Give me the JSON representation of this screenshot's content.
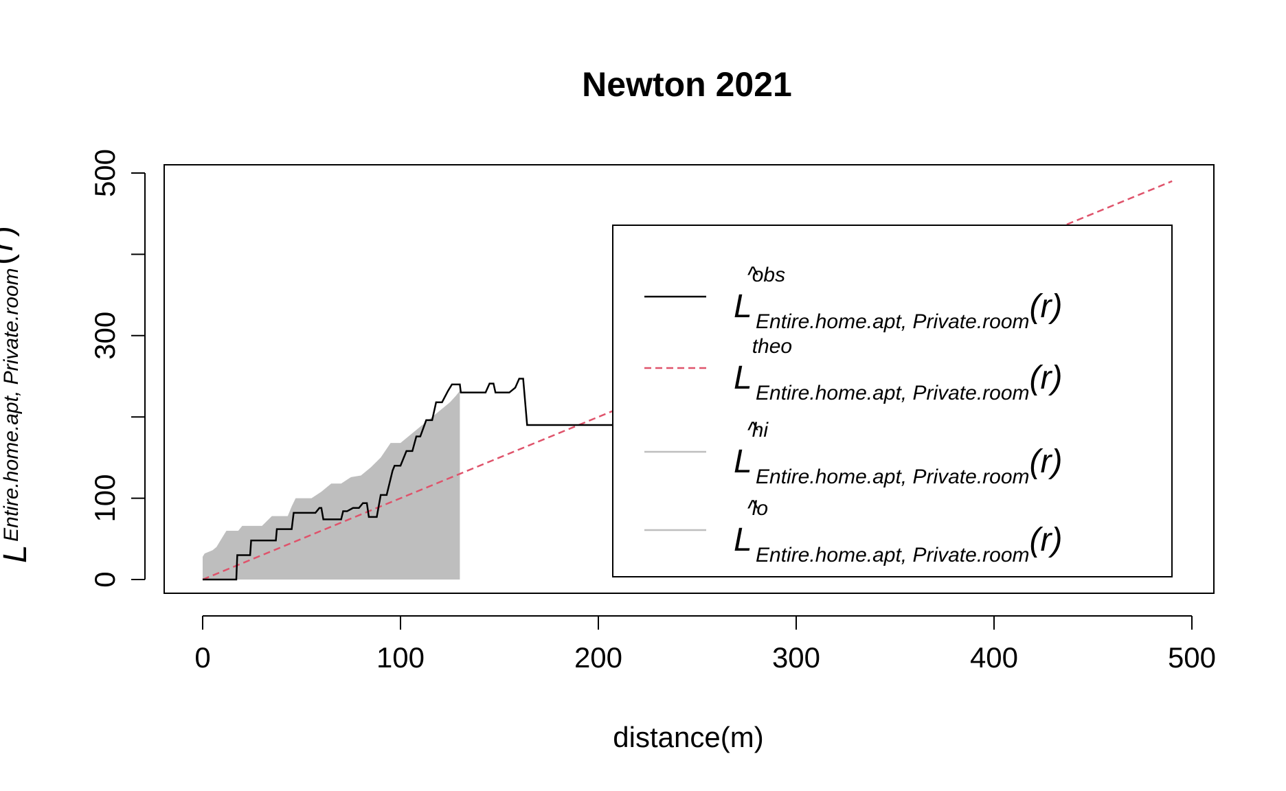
{
  "chart_data": {
    "type": "line",
    "title": "Newton 2021",
    "xlabel": "distance(m)",
    "ylabel": {
      "main": "L",
      "sub": "Entire.home.apt, Private.room",
      "arg_open": "(",
      "arg": "r",
      "arg_close": ")"
    },
    "xlim": [
      0,
      500
    ],
    "ylim": [
      0,
      500
    ],
    "xticks": [
      "0",
      "100",
      "200",
      "300",
      "400",
      "500"
    ],
    "yticks": [
      "0",
      "100",
      "300",
      "500"
    ],
    "ytick_values": [
      0,
      100,
      200,
      300,
      400,
      500
    ],
    "legend_position": "right",
    "legend": [
      {
        "key": "obs",
        "main": "L",
        "hat": "^",
        "sup": "obs",
        "sub": "Entire.home.apt, Private.room",
        "arg": "(r)",
        "color": "#000000",
        "dash": ""
      },
      {
        "key": "theo",
        "main": "L",
        "hat": "",
        "sup": "theo",
        "sub": "Entire.home.apt, Private.room",
        "arg": "(r)",
        "color": "#DF536B",
        "dash": "10,6"
      },
      {
        "key": "hi",
        "main": "L",
        "hat": "^",
        "sup": "hi",
        "sub": "Entire.home.apt, Private.room",
        "arg": "(r)",
        "color": "#BEBEBE",
        "dash": ""
      },
      {
        "key": "lo",
        "main": "L",
        "hat": "^",
        "sup": "lo",
        "sub": "Entire.home.apt, Private.room",
        "arg": "(r)",
        "color": "#BEBEBE",
        "dash": ""
      }
    ],
    "series": [
      {
        "name": "obs",
        "color": "#000000",
        "x": [
          0,
          17,
          17.5,
          24,
          24.5,
          37,
          37.5,
          45,
          46,
          55,
          57,
          59,
          60,
          61,
          70,
          71,
          73,
          76,
          79,
          81,
          83,
          84,
          88,
          90,
          93,
          95,
          96,
          97,
          100,
          103,
          106,
          108,
          110,
          113,
          116,
          118,
          121,
          124,
          126,
          130,
          130.5,
          143,
          145,
          147,
          148,
          155,
          158,
          160,
          162,
          164,
          165,
          218,
          219,
          228
        ],
        "y": [
          0,
          0,
          30,
          30,
          48,
          48,
          62,
          62,
          82,
          82,
          82,
          88,
          88,
          74,
          74,
          84,
          84,
          88,
          88,
          94,
          94,
          77,
          77,
          104,
          104,
          124,
          134,
          140,
          140,
          158,
          158,
          176,
          176,
          196,
          196,
          218,
          218,
          232,
          240,
          240,
          230,
          230,
          241,
          241,
          230,
          230,
          236,
          247,
          247,
          190,
          190,
          190,
          230,
          230
        ]
      },
      {
        "name": "theo",
        "color": "#DF536B",
        "x": [
          0,
          490
        ],
        "y": [
          0,
          490
        ]
      },
      {
        "name": "hi",
        "color": "#BEBEBE",
        "x": [
          0,
          1,
          5,
          7,
          10,
          12,
          18,
          20,
          25,
          30,
          35,
          40,
          43,
          45,
          47,
          55,
          60,
          65,
          70,
          75,
          80,
          85,
          90,
          95,
          100,
          105,
          110,
          115,
          120,
          125,
          128,
          130
        ],
        "y": [
          28,
          32,
          36,
          40,
          52,
          60,
          60,
          66,
          66,
          66,
          78,
          78,
          78,
          90,
          100,
          100,
          108,
          118,
          118,
          126,
          128,
          138,
          150,
          168,
          168,
          178,
          188,
          198,
          208,
          218,
          226,
          232
        ]
      },
      {
        "name": "lo",
        "color": "#BEBEBE",
        "x": [
          0,
          130
        ],
        "y": [
          0,
          0
        ]
      }
    ]
  }
}
